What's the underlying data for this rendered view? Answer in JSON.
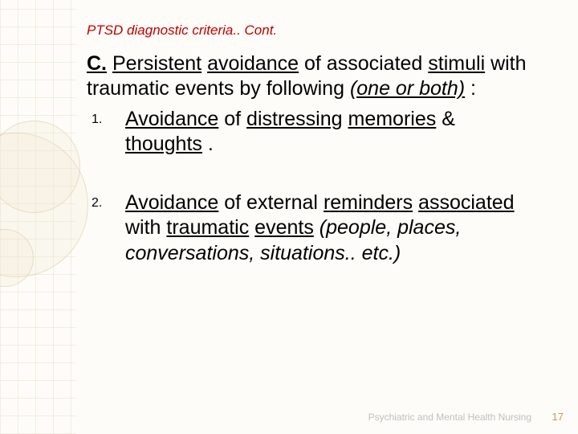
{
  "colors": {
    "title": "#c00000",
    "body_text": "#000000",
    "footer_text": "#bfbfbf",
    "page_number": "#c89860",
    "background": "#fdfcf8",
    "pattern_line": "rgba(210,190,150,0.22)",
    "circle_border": "rgba(200,178,130,0.35)",
    "circle_fill": "rgba(238,226,196,0.18)"
  },
  "typography": {
    "title_size_pt": 13,
    "title_italic": true,
    "body_size_pt": 19,
    "list_marker_size_pt": 12,
    "footer_size_pt": 9,
    "font_family": "Arial"
  },
  "title": "PTSD diagnostic criteria.. Cont.",
  "section": {
    "letter": "C.",
    "lead_word1": "Persistent",
    "lead_word2": "avoidance",
    "tail1": " of associated ",
    "word3": "stimuli",
    "tail2": " with traumatic events by following ",
    "phrase_one_or_both": "(one or both)",
    "colon": " :"
  },
  "items": [
    {
      "w_avoidance": "Avoidance",
      "mid1": " of ",
      "w_distressing": "distressing",
      "w_memories": "memories",
      "mid2": " & ",
      "w_thoughts": "thoughts",
      "end": "."
    },
    {
      "w_avoidance": "Avoidance",
      "mid1": " of external ",
      "w_reminders": "reminders",
      "w_associated": "associated",
      "mid2": " with ",
      "w_traumatic": "traumatic",
      "w_events": "events",
      "paren": " (people, places, conversations, situations.. etc.)"
    }
  ],
  "footer": "Psychiatric and Mental Health Nursing",
  "page": "17"
}
